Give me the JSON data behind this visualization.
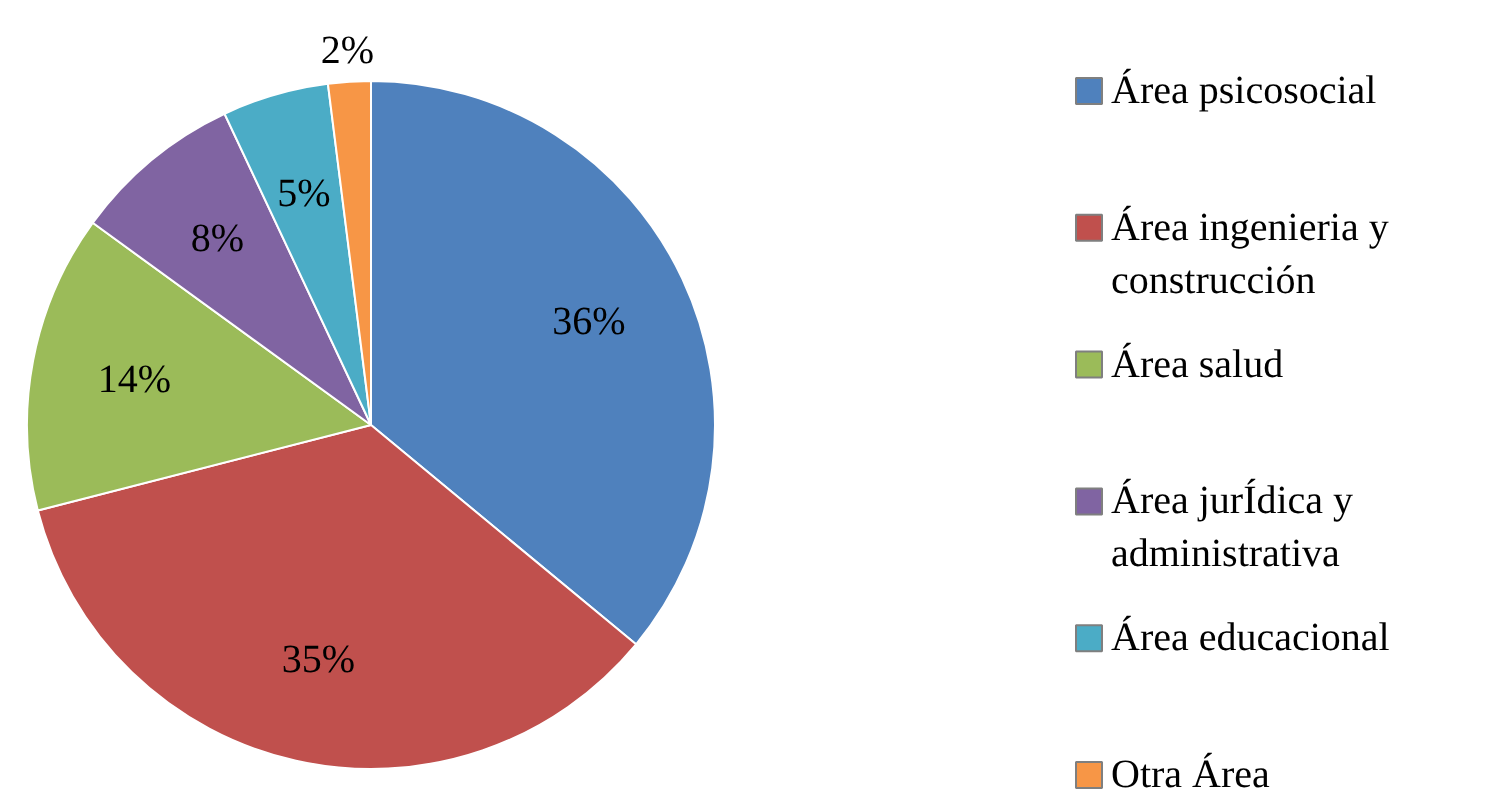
{
  "chart_data": {
    "type": "pie",
    "categories": [
      "Área psicosocial",
      "Área ingenieria y construcción",
      "Área salud",
      "Área jurÍdica y administrativa",
      "Área educacional",
      "Otra Área"
    ],
    "values": [
      36,
      35,
      14,
      8,
      5,
      2
    ],
    "colors": [
      "#4f81bd",
      "#c0504d",
      "#9bbb59",
      "#8064a2",
      "#4bacc6",
      "#f79646"
    ],
    "value_labels": [
      "36%",
      "35%",
      "14%",
      "8%",
      "5%",
      "2%"
    ],
    "legend": "right"
  }
}
